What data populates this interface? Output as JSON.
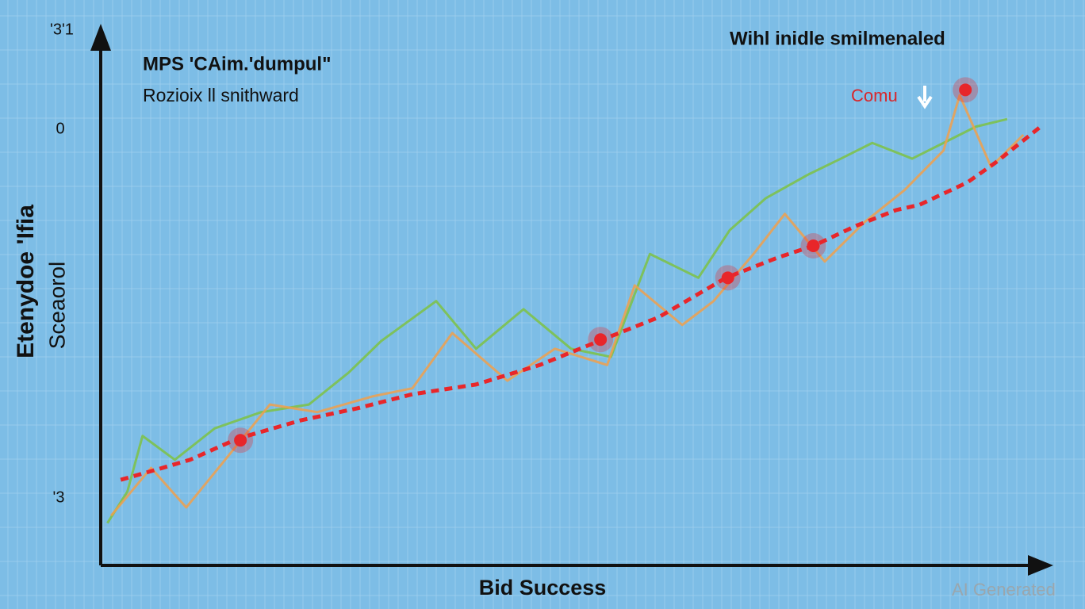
{
  "chart_data": {
    "type": "line",
    "title": "MPS 'CAim.'dumpul\"",
    "subtitle": "Rozioix ll snithward",
    "corner_text": "Wihl inidle smilmenaled",
    "annotation": "Comu",
    "x_label": "Bid Success",
    "y_label": "Etenydoe 'Ifia",
    "y_label_2": "Sceaorol",
    "y_axis_marks": [
      "'3'1",
      "0",
      "'3"
    ],
    "watermark": "AI Generated",
    "xlim": [
      0,
      100
    ],
    "ylim": [
      0,
      100
    ],
    "grid": true,
    "series": [
      {
        "color": "#7dc243",
        "style": "jagged",
        "x": [
          0.7,
          2.8,
          4.4,
          7.8,
          12.0,
          16.9,
          21.9,
          26.1,
          29.5,
          35.3,
          39.5,
          44.5,
          49.5,
          53.7,
          57.8,
          62.9,
          66.2,
          70.0,
          74.5,
          77.9,
          81.2,
          85.4,
          88.7,
          92.1,
          95.4
        ],
        "values": [
          7.8,
          13.6,
          23.9,
          19.5,
          25.3,
          28.3,
          29.7,
          35.6,
          41.4,
          48.8,
          40.0,
          47.3,
          40.0,
          38.5,
          57.5,
          53.1,
          61.9,
          67.8,
          72.2,
          75.1,
          78.0,
          75.1,
          78.0,
          81.0,
          82.4
        ]
      },
      {
        "color": "#f0a04b",
        "style": "jagged",
        "x": [
          1.1,
          5.3,
          9.0,
          12.4,
          17.8,
          22.8,
          28.6,
          32.8,
          37.0,
          42.8,
          47.8,
          53.3,
          56.2,
          61.2,
          64.5,
          68.7,
          72.0,
          76.2,
          80.4,
          84.6,
          88.7,
          90.4,
          93.7,
          97.1
        ],
        "values": [
          9.2,
          18.0,
          10.7,
          18.0,
          29.7,
          28.3,
          31.2,
          32.7,
          42.9,
          34.1,
          40.0,
          37.0,
          51.7,
          44.4,
          48.8,
          57.5,
          64.9,
          56.1,
          63.4,
          69.3,
          76.6,
          86.8,
          73.6,
          79.5
        ]
      },
      {
        "color": "#e8262a",
        "style": "dashed",
        "x": [
          2.1,
          6.5,
          9.4,
          14.4,
          21.1,
          27.0,
          32.8,
          39.5,
          46.2,
          52.4,
          58.7,
          65.8,
          71.2,
          75.0,
          79.5,
          83.7,
          86.2,
          91.2,
          94.2,
          99.2
        ],
        "values": [
          15.8,
          18.0,
          19.5,
          23.4,
          26.8,
          29.0,
          31.6,
          33.4,
          37.0,
          41.4,
          45.8,
          53.1,
          56.8,
          59.0,
          62.7,
          65.6,
          66.6,
          70.7,
          74.4,
          81.4
        ]
      },
      {
        "color": "#e8262a",
        "style": "points",
        "x": [
          14.7,
          52.6,
          66.0,
          75.0,
          91.0
        ],
        "values": [
          23.1,
          41.7,
          53.1,
          59.0,
          87.8
        ]
      }
    ]
  }
}
